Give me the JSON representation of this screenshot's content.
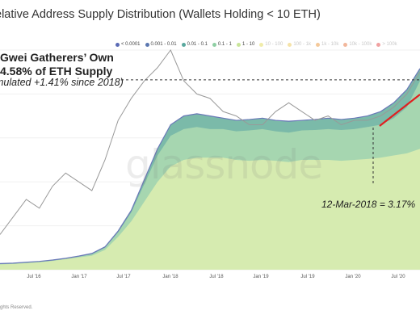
{
  "header": {
    "title": "elative Address Supply Distribution (Wallets Holding < 10 ETH)"
  },
  "legend": [
    {
      "label": "< 0.0001",
      "color": "#5b6bb5"
    },
    {
      "label": "0.001 - 0.01",
      "color": "#5b77b0"
    },
    {
      "label": "0.01 - 0.1",
      "color": "#5aa89e"
    },
    {
      "label": "0.1 - 1",
      "color": "#8fcfa4"
    },
    {
      "label": "1 - 10",
      "color": "#c9e59a"
    },
    {
      "label": "10 - 100",
      "color": "#f0ecaa"
    },
    {
      "label": "100 - 1k",
      "color": "#f5e3a8"
    },
    {
      "label": "1k - 10k",
      "color": "#f4c99a"
    },
    {
      "label": "10k - 100k",
      "color": "#f2b79c"
    },
    {
      "label": "> 100k",
      "color": "#f0a1a1"
    }
  ],
  "annotations": {
    "headline_line1": "Gwei Gatherers’ Own",
    "headline_line2": "4.58% of ETH Supply",
    "subline": "mulated +1.41% since 2018)",
    "marker_label": "12-Mar-2018 = 3.17%"
  },
  "watermark": "glassnode",
  "footer": "ghts Reserved.",
  "chart_data": {
    "type": "area",
    "x_ticks": [
      "Jul '16",
      "Jan '17",
      "Jul '17",
      "Jan '18",
      "Jul '18",
      "Jan '19",
      "Jul '19",
      "Jan '20",
      "Jul '20"
    ],
    "y_range": [
      0,
      5
    ],
    "series": [
      {
        "name": "1 - 10",
        "color": "#d6ebb0",
        "role": "base",
        "values": [
          0.12,
          0.13,
          0.15,
          0.17,
          0.2,
          0.24,
          0.28,
          0.32,
          0.45,
          0.75,
          1.1,
          1.55,
          2.0,
          2.35,
          2.5,
          2.55,
          2.55,
          2.55,
          2.5,
          2.48,
          2.5,
          2.48,
          2.45,
          2.5,
          2.5,
          2.5,
          2.48,
          2.5,
          2.52,
          2.55,
          2.6,
          2.65,
          2.75
        ]
      },
      {
        "name": "0.1 - 1",
        "color": "#a6d6b0",
        "role": "middle",
        "values": [
          0.13,
          0.14,
          0.16,
          0.18,
          0.21,
          0.25,
          0.3,
          0.35,
          0.5,
          0.85,
          1.3,
          1.95,
          2.6,
          3.05,
          3.2,
          3.25,
          3.2,
          3.2,
          3.15,
          3.17,
          3.2,
          3.15,
          3.12,
          3.17,
          3.18,
          3.2,
          3.18,
          3.2,
          3.25,
          3.3,
          3.45,
          3.7,
          4.3
        ]
      },
      {
        "name": "0.01 - 0.1",
        "color": "#7bbaa9",
        "role": "top",
        "values": [
          0.14,
          0.15,
          0.17,
          0.19,
          0.22,
          0.26,
          0.31,
          0.37,
          0.52,
          0.88,
          1.35,
          2.05,
          2.75,
          3.3,
          3.5,
          3.55,
          3.5,
          3.45,
          3.4,
          3.42,
          3.45,
          3.4,
          3.38,
          3.4,
          3.42,
          3.45,
          3.42,
          3.45,
          3.5,
          3.6,
          3.8,
          4.1,
          4.58
        ]
      }
    ],
    "price_line": {
      "name": "ETH price",
      "color": "#999999",
      "values": [
        0.8,
        1.2,
        1.6,
        1.4,
        1.9,
        2.2,
        2.0,
        1.8,
        2.5,
        3.4,
        3.9,
        4.3,
        4.6,
        5.0,
        4.3,
        4.0,
        3.9,
        3.6,
        3.5,
        3.3,
        3.3,
        3.6,
        3.8,
        3.6,
        3.4,
        3.5,
        3.3,
        3.4,
        3.4,
        3.5,
        3.7,
        4.0,
        4.5
      ]
    },
    "reference_line_value": 4.58,
    "marker_value": 3.17,
    "trend_line_value_range": [
      3.65,
      4.5
    ]
  }
}
